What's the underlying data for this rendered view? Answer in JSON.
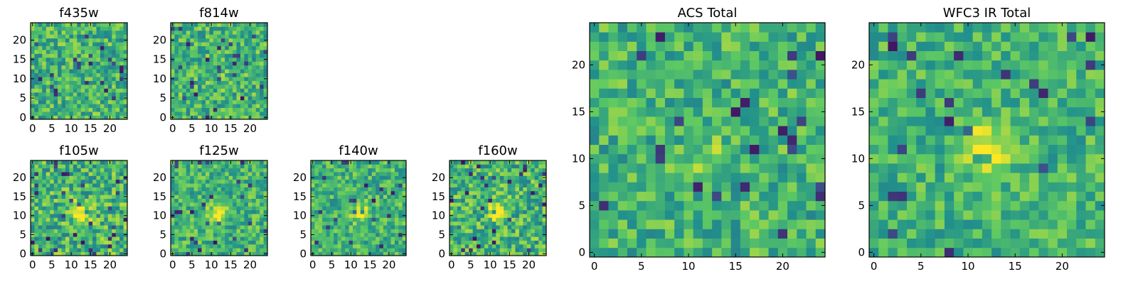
{
  "figure": {
    "colormap": "viridis",
    "colormap_stops": [
      "#440154",
      "#3b528b",
      "#21918c",
      "#5ec962",
      "#fde725"
    ],
    "frame_color": "#000000",
    "background": "#ffffff"
  },
  "chart_data": [
    {
      "type": "heatmap",
      "title": "f435w",
      "grid_size": 25,
      "xlim": [
        -0.5,
        24.5
      ],
      "ylim": [
        -0.5,
        24.5
      ],
      "xticks": [
        0,
        5,
        10,
        15,
        20
      ],
      "yticks": [
        0,
        5,
        10,
        15,
        20
      ],
      "values": "25x25 pixel cutout, mostly mid-high values (green-yellow) with scattered low (dark blue/purple) pixels; no strong central source",
      "central_source": 0.0,
      "noise_level": 0.22
    },
    {
      "type": "heatmap",
      "title": "f814w",
      "grid_size": 25,
      "xlim": [
        -0.5,
        24.5
      ],
      "ylim": [
        -0.5,
        24.5
      ],
      "xticks": [
        0,
        5,
        10,
        15,
        20
      ],
      "yticks": [
        0,
        5,
        10,
        15,
        20
      ],
      "values": "25x25 pixel cutout, noisy green-yellow field with a few dark pixels",
      "central_source": 0.05,
      "noise_level": 0.22
    },
    {
      "type": "heatmap",
      "title": "f105w",
      "grid_size": 25,
      "xlim": [
        -0.5,
        24.5
      ],
      "ylim": [
        -0.5,
        24.5
      ],
      "xticks": [
        0,
        5,
        10,
        15,
        20
      ],
      "yticks": [
        0,
        5,
        10,
        15,
        20
      ],
      "values": "25x25 pixel cutout, darker teal-green field with bright yellow compact source near (12,11)",
      "central_source": 0.45,
      "noise_level": 0.25
    },
    {
      "type": "heatmap",
      "title": "f125w",
      "grid_size": 25,
      "xlim": [
        -0.5,
        24.5
      ],
      "ylim": [
        -0.5,
        24.5
      ],
      "xticks": [
        0,
        5,
        10,
        15,
        20
      ],
      "yticks": [
        0,
        5,
        10,
        15,
        20
      ],
      "values": "25x25 pixel cutout, green-yellow field with bright yellow source near center",
      "central_source": 0.35,
      "noise_level": 0.2
    },
    {
      "type": "heatmap",
      "title": "f140w",
      "grid_size": 25,
      "xlim": [
        -0.5,
        24.5
      ],
      "ylim": [
        -0.5,
        24.5
      ],
      "xticks": [
        0,
        5,
        10,
        15,
        20
      ],
      "yticks": [
        0,
        5,
        10,
        15,
        20
      ],
      "values": "25x25 pixel cutout, yellow-green field with bright source near center",
      "central_source": 0.3,
      "noise_level": 0.2
    },
    {
      "type": "heatmap",
      "title": "f160w",
      "grid_size": 25,
      "xlim": [
        -0.5,
        24.5
      ],
      "ylim": [
        -0.5,
        24.5
      ],
      "xticks": [
        0,
        5,
        10,
        15,
        20
      ],
      "yticks": [
        0,
        5,
        10,
        15,
        20
      ],
      "values": "25x25 pixel cutout, green field with bright source near (13,11) and dark pixels lower-left",
      "central_source": 0.4,
      "noise_level": 0.24
    },
    {
      "type": "heatmap",
      "title": "ACS Total",
      "grid_size": 25,
      "xlim": [
        -0.5,
        24.5
      ],
      "ylim": [
        -0.5,
        24.5
      ],
      "xticks": [
        0,
        5,
        10,
        15,
        20
      ],
      "yticks": [
        0,
        5,
        10,
        15,
        20
      ],
      "values": "25x25 pixel combined ACS image, green-yellow blocky field with scattered dark pixels and brighter central region",
      "central_source": 0.15,
      "noise_level": 0.2
    },
    {
      "type": "heatmap",
      "title": "WFC3 IR Total",
      "grid_size": 25,
      "xlim": [
        -0.5,
        24.5
      ],
      "ylim": [
        -0.5,
        24.5
      ],
      "xticks": [
        0,
        5,
        10,
        15,
        20
      ],
      "yticks": [
        0,
        5,
        10,
        15,
        20
      ],
      "values": "25x25 pixel combined IR image, green field with bright yellow source centered near (12,11) and scattered dark pixels",
      "central_source": 0.45,
      "noise_level": 0.18
    }
  ]
}
